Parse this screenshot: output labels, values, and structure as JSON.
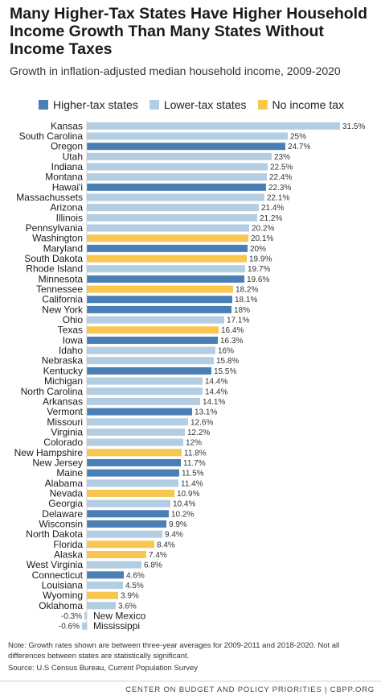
{
  "header": {
    "title": "Many Higher-Tax States Have Higher Household Income Growth Than Many States Without Income Taxes",
    "subtitle": "Growth in inflation-adjusted median household income, 2009-2020"
  },
  "legend": {
    "items": [
      {
        "label": "Higher-tax states",
        "color": "#4a7fb5"
      },
      {
        "label": "Lower-tax states",
        "color": "#b3cde3"
      },
      {
        "label": "No income tax",
        "color": "#f9c74f"
      }
    ]
  },
  "chart_data": {
    "type": "bar",
    "orientation": "horizontal",
    "unit": "%",
    "colors": {
      "higher": "#4a7fb5",
      "lower": "#b3cde3",
      "none": "#f9c74f"
    },
    "xlim": [
      -0.6,
      31.5
    ],
    "categories": [
      "Kansas",
      "South Carolina",
      "Oregon",
      "Utah",
      "Indiana",
      "Montana",
      "Hawai'i",
      "Massachussets",
      "Arizona",
      "Illinois",
      "Pennsylvania",
      "Washington",
      "Maryland",
      "South Dakota",
      "Rhode Island",
      "Minnesota",
      "Tennessee",
      "California",
      "New York",
      "Ohio",
      "Texas",
      "Iowa",
      "Idaho",
      "Nebraska",
      "Kentucky",
      "Michigan",
      "North Carolina",
      "Arkansas",
      "Vermont",
      "Missouri",
      "Virginia",
      "Colorado",
      "New Hampshire",
      "New Jersey",
      "Maine",
      "Alabama",
      "Nevada",
      "Georgia",
      "Delaware",
      "Wisconsin",
      "North Dakota",
      "Florida",
      "Alaska",
      "West Virginia",
      "Connecticut",
      "Louisiana",
      "Wyoming",
      "Oklahoma",
      "New Mexico",
      "Mississippi"
    ],
    "values": [
      31.5,
      25,
      24.7,
      23,
      22.5,
      22.4,
      22.3,
      22.1,
      21.4,
      21.2,
      20.2,
      20.1,
      20,
      19.9,
      19.7,
      19.6,
      18.2,
      18.1,
      18,
      17.1,
      16.4,
      16.3,
      16,
      15.8,
      15.5,
      14.4,
      14.4,
      14.1,
      13.1,
      12.6,
      12.2,
      12,
      11.8,
      11.7,
      11.5,
      11.4,
      10.9,
      10.4,
      10.2,
      9.9,
      9.4,
      8.4,
      7.4,
      6.8,
      4.6,
      4.5,
      3.9,
      3.6,
      -0.3,
      -0.6
    ],
    "value_labels": [
      "31.5%",
      "25%",
      "24.7%",
      "23%",
      "22.5%",
      "22.4%",
      "22.3%",
      "22.1%",
      "21.4%",
      "21.2%",
      "20.2%",
      "20.1%",
      "20%",
      "19.9%",
      "19.7%",
      "19.6%",
      "18.2%",
      "18.1%",
      "18%",
      "17.1%",
      "16.4%",
      "16.3%",
      "16%",
      "15.8%",
      "15.5%",
      "14.4%",
      "14.4%",
      "14.1%",
      "13.1%",
      "12.6%",
      "12.2%",
      "12%",
      "11.8%",
      "11.7%",
      "11.5%",
      "11.4%",
      "10.9%",
      "10.4%",
      "10.2%",
      "9.9%",
      "9.4%",
      "8.4%",
      "7.4%",
      "6.8%",
      "4.6%",
      "4.5%",
      "3.9%",
      "3.6%",
      "-0.3%",
      "-0.6%"
    ],
    "groups": [
      "lower",
      "lower",
      "higher",
      "lower",
      "lower",
      "lower",
      "higher",
      "lower",
      "lower",
      "lower",
      "lower",
      "none",
      "higher",
      "none",
      "lower",
      "higher",
      "none",
      "higher",
      "higher",
      "lower",
      "none",
      "higher",
      "lower",
      "lower",
      "higher",
      "lower",
      "lower",
      "lower",
      "higher",
      "lower",
      "lower",
      "lower",
      "none",
      "higher",
      "higher",
      "lower",
      "none",
      "lower",
      "higher",
      "higher",
      "lower",
      "none",
      "none",
      "lower",
      "higher",
      "lower",
      "none",
      "lower",
      "lower",
      "lower"
    ]
  },
  "notes": {
    "note": "Note: Growth rates shown are between three-year averages for 2009-2011 and 2018-2020. Not all differences between states are statistically significant.",
    "source": "Source: U.S Census Bureau, Current Population Survey"
  },
  "footer": {
    "text": "CENTER ON BUDGET AND POLICY PRIORITIES | CBPP.ORG"
  }
}
